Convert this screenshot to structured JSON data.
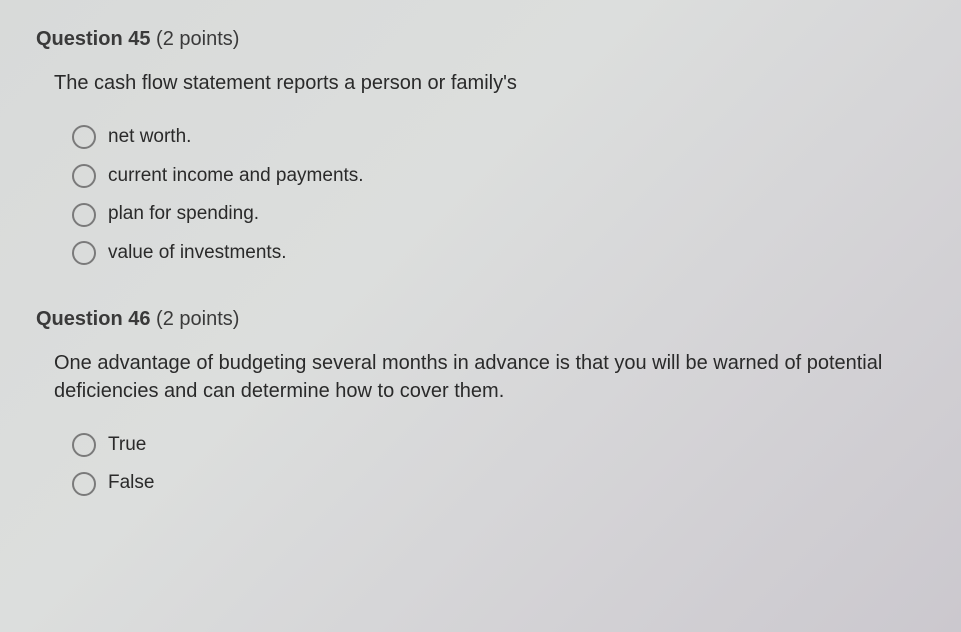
{
  "style": {
    "background_gradient": [
      "#d8dad9",
      "#dcdedd",
      "#d4d3d6",
      "#cbc8ce"
    ],
    "text_color": "#2a2a2a",
    "header_color": "#3a3a3a",
    "radio_border_color": "#7a7a7a",
    "radio_border_width": 2.5,
    "radio_size": 24,
    "font_family": "Segoe UI, Arial, sans-serif",
    "header_fontsize": 20,
    "question_fontsize": 20,
    "option_fontsize": 19,
    "question_indent": 18,
    "options_indent": 36
  },
  "q45": {
    "label": "Question 45",
    "points": "(2 points)",
    "text": "The cash flow statement reports a person or family's",
    "options": {
      "0": "net worth.",
      "1": "current income and payments.",
      "2": "plan for spending.",
      "3": "value of investments."
    }
  },
  "q46": {
    "label": "Question 46",
    "points": "(2 points)",
    "text": "One advantage of budgeting several months in advance is that you will be warned of potential deficiencies and can determine how to cover them.",
    "options": {
      "0": "True",
      "1": "False"
    }
  }
}
